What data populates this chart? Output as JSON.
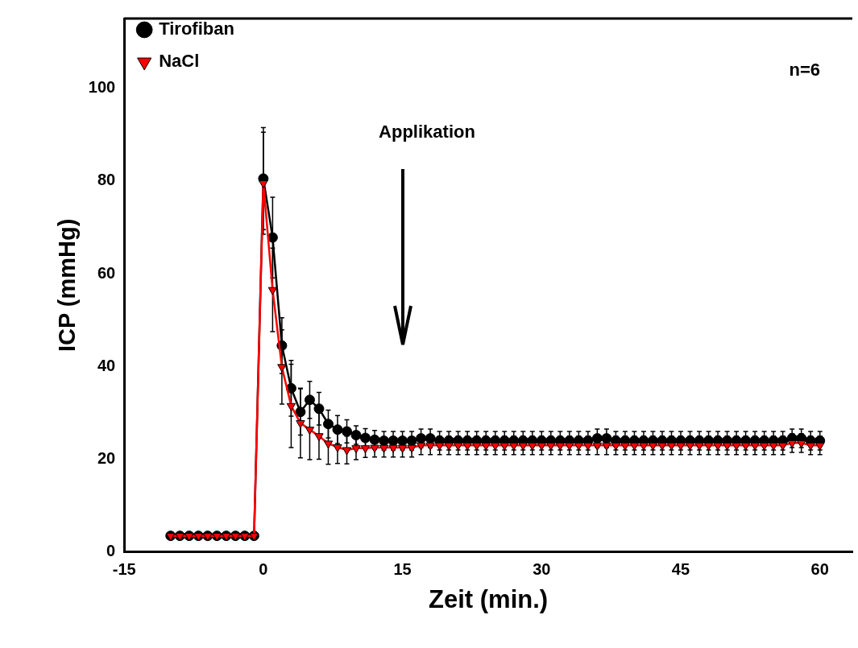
{
  "chart_data": {
    "type": "line",
    "xlabel": "Zeit (min.)",
    "ylabel": "ICP (mmHg)",
    "x": [
      -10,
      -9,
      -8,
      -7,
      -6,
      -5,
      -4,
      -3,
      -2,
      -1,
      0,
      1,
      2,
      3,
      4,
      5,
      6,
      7,
      8,
      9,
      10,
      11,
      12,
      13,
      14,
      15,
      16,
      17,
      18,
      19,
      20,
      21,
      22,
      23,
      24,
      25,
      26,
      27,
      28,
      29,
      30,
      31,
      32,
      33,
      34,
      35,
      36,
      37,
      38,
      39,
      40,
      41,
      42,
      43,
      44,
      45,
      46,
      47,
      48,
      49,
      50,
      51,
      52,
      53,
      54,
      55,
      56,
      57,
      58,
      59,
      60
    ],
    "series": [
      {
        "name": "NaCl",
        "color": "#ff0000",
        "marker": "triangle",
        "values": [
          3.5,
          3.5,
          3.5,
          3.5,
          3.5,
          3.5,
          3.5,
          3.5,
          3.5,
          3.5,
          79.5,
          56.5,
          39.9,
          31.5,
          27.8,
          26.4,
          25,
          23.4,
          22.6,
          22,
          22.4,
          22.4,
          22.5,
          22.5,
          22.5,
          22.5,
          22.5,
          23,
          23,
          23,
          23,
          23,
          23,
          23,
          23,
          23,
          23,
          23,
          23,
          23,
          23,
          23,
          23,
          23,
          23,
          23,
          23,
          23,
          23,
          23,
          23,
          23,
          23,
          23,
          23,
          23,
          23,
          23,
          23,
          23,
          23,
          23,
          23,
          23,
          23,
          23,
          23,
          23.5,
          23.5,
          23,
          23
        ],
        "errors": [
          null,
          null,
          null,
          null,
          null,
          null,
          null,
          null,
          null,
          null,
          11,
          9,
          8,
          9,
          7.5,
          6.5,
          5,
          4.5,
          3.5,
          3,
          2.5,
          2,
          2,
          2,
          2,
          2,
          2,
          2,
          2,
          2,
          2,
          2,
          2,
          2,
          2,
          2,
          2,
          2,
          2,
          2,
          2,
          2,
          2,
          2,
          2,
          2,
          2,
          2,
          2,
          2,
          2,
          2,
          2,
          2,
          2,
          2,
          2,
          2,
          2,
          2,
          2,
          2,
          2,
          2,
          2,
          2,
          2,
          2,
          2,
          2,
          2
        ]
      },
      {
        "name": "Tirofiban",
        "color": "#000000",
        "marker": "circle",
        "values": [
          3.5,
          3.5,
          3.5,
          3.5,
          3.5,
          3.5,
          3.5,
          3.5,
          3.5,
          3.5,
          80.5,
          67.8,
          44.5,
          35.3,
          30.2,
          32.8,
          30.9,
          27.6,
          26.4,
          26,
          25.2,
          24.6,
          24.2,
          24,
          24,
          24,
          24,
          24.5,
          24.5,
          24,
          24,
          24,
          24,
          24,
          24,
          24,
          24,
          24,
          24,
          24,
          24,
          24,
          24,
          24,
          24,
          24,
          24.5,
          24.5,
          24,
          24,
          24,
          24,
          24,
          24,
          24,
          24,
          24,
          24,
          24,
          24,
          24,
          24,
          24,
          24,
          24,
          24,
          24,
          24.5,
          24.5,
          24,
          24
        ],
        "errors": [
          null,
          null,
          null,
          null,
          null,
          null,
          null,
          null,
          null,
          null,
          11,
          8.7,
          6,
          6,
          5,
          4,
          3.5,
          3,
          3,
          2.5,
          2,
          2,
          2,
          2,
          2,
          2,
          2,
          2,
          2,
          2,
          2,
          2,
          2,
          2,
          2,
          2,
          2,
          2,
          2,
          2,
          2,
          2,
          2,
          2,
          2,
          2,
          2,
          2,
          2,
          2,
          2,
          2,
          2,
          2,
          2,
          2,
          2,
          2,
          2,
          2,
          2,
          2,
          2,
          2,
          2,
          2,
          2,
          2,
          2,
          2,
          2
        ]
      }
    ],
    "xlim": [
      -15,
      63.5
    ],
    "ylim": [
      0,
      115
    ],
    "xticks": [
      -15,
      0,
      15,
      30,
      45,
      60
    ],
    "yticks": [
      0,
      20,
      40,
      60,
      80,
      100
    ],
    "grid": false,
    "legend": "top left",
    "line_style": "solid",
    "annotations": [
      "n=6",
      "Applikation"
    ]
  }
}
